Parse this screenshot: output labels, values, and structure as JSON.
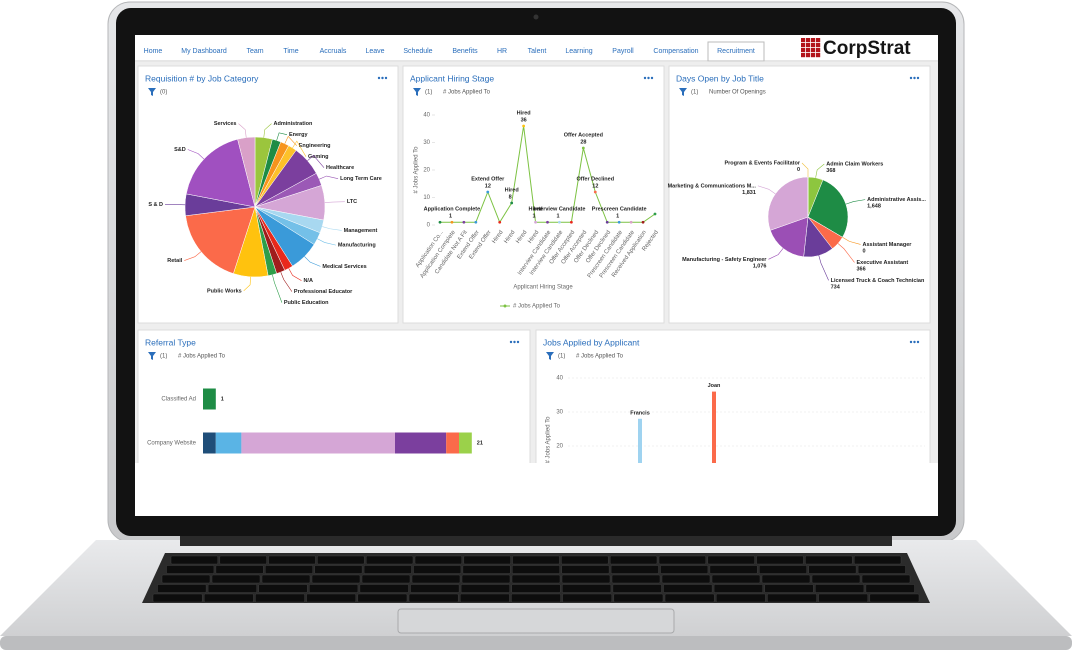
{
  "nav": {
    "tabs": [
      "Home",
      "My Dashboard",
      "Team",
      "Time",
      "Accruals",
      "Leave",
      "Schedule",
      "Benefits",
      "HR",
      "Talent",
      "Learning",
      "Payroll",
      "Compensation",
      "Recruitment"
    ],
    "active": 13,
    "logo": "CorpStrat"
  },
  "requisition": {
    "title": "Requisition # by Job Category",
    "filter": "(0)",
    "chart": {
      "type": "pie",
      "categories": [
        "Administration",
        "Energy",
        "Engineering",
        "Gaming",
        "Healthcare",
        "Long Term Care",
        "LTC",
        "Management",
        "Manufacturing",
        "Medical Services",
        "N/A",
        "Professional Educator",
        "Public Education",
        "Public Works",
        "Retail",
        "S & D",
        "S&D",
        "Services"
      ],
      "values": [
        4,
        2,
        2,
        2,
        7,
        3,
        8,
        3,
        3,
        7,
        2,
        2,
        2,
        8,
        18,
        5,
        18,
        4
      ],
      "colors": [
        "#9bc53d",
        "#1e8c45",
        "#f7941d",
        "#fdc12a",
        "#7b3f9e",
        "#9b59b6",
        "#d5a6d6",
        "#a8d8f0",
        "#74c0e8",
        "#3a9ad9",
        "#e8291c",
        "#a01c1c",
        "#2e9e4a",
        "#ffc20e",
        "#fb6a4a",
        "#6a3d9a",
        "#a050c0",
        "#d9a0c8"
      ]
    }
  },
  "hiring": {
    "title": "Applicant Hiring Stage",
    "filter": "(1)",
    "filter_label": "# Jobs Applied To",
    "chart": {
      "type": "line",
      "x_label": "Applicant Hiring Stage",
      "y_label": "# Jobs Applied To",
      "categories": [
        "Application Co...",
        "Application Complete",
        "Candidate Not A Fit",
        "Extend Offer",
        "Extend Offer",
        "Hired",
        "Hired",
        "Hired",
        "Hired",
        "Interview Candidate",
        "Interview Candidate",
        "Offer Accepted",
        "Offer Accepted",
        "Offer Declined",
        "Offer Declined",
        "Prescreen Candidate",
        "Prescreen Candidate",
        "Received Application",
        "Rejected"
      ],
      "series": [
        {
          "name": "# Jobs Applied To",
          "color": "#7cc242",
          "values": [
            1,
            1,
            1,
            1,
            12,
            1,
            8,
            36,
            1,
            1,
            1,
            1,
            28,
            12,
            1,
            1,
            1,
            1,
            4
          ]
        }
      ],
      "marker_colors": [
        "#1e8c45",
        "#f7941d",
        "#7b3f9e",
        "#3a9ad9",
        "#3a9ad9",
        "#e8291c",
        "#1e8c45",
        "#ffc20e",
        "#d5a6d6",
        "#7b3f9e",
        "#a8d8f0",
        "#e8291c",
        "#7cc242",
        "#fb6a4a",
        "#6a3d9a",
        "#3a9ad9",
        "#d9a0c8",
        "#a01c1c",
        "#2e9e4a"
      ],
      "ylim": [
        0,
        40
      ],
      "yticks": [
        0,
        10,
        20,
        30,
        40
      ]
    }
  },
  "days_open": {
    "title": "Days Open by Job Title",
    "filter": "(1)",
    "filter_label": "Number Of Openings",
    "chart": {
      "type": "pie",
      "categories": [
        "Admin Claim Workers",
        "Administrative Assis...",
        "Assistant Manager",
        "Executive Assistant",
        "Licensed Truck & Coach Technician",
        "Manufacturing - Safety Engineer",
        "Marketing & Communications M...",
        "Program & Events Facilitator"
      ],
      "values": [
        368,
        1648,
        0,
        366,
        734,
        1076,
        1831,
        0
      ],
      "value_labels": [
        "368",
        "1,648",
        "0",
        "366",
        "734",
        "1,076",
        "1,831",
        "0"
      ],
      "colors": [
        "#8dc63f",
        "#1e8c45",
        "#f7941d",
        "#fb6a4a",
        "#6a3d9a",
        "#9b4fb5",
        "#d5a6d6",
        "#f0c040"
      ]
    }
  },
  "referral": {
    "title": "Referral Type",
    "filter": "(1)",
    "filter_label": "# Jobs Applied To",
    "chart": {
      "type": "stacked_bar",
      "categories": [
        "Classified Ad",
        "Company Website"
      ],
      "series": [
        {
          "color": "#1f4e79",
          "values": [
            null,
            1
          ]
        },
        {
          "color": "#5ab4e5",
          "values": [
            null,
            2
          ]
        },
        {
          "color": "#d5a6d6",
          "values": [
            null,
            12
          ]
        },
        {
          "color": "#7b3f9e",
          "values": [
            null,
            4
          ]
        },
        {
          "color": "#fb6a4a",
          "values": [
            null,
            1
          ]
        },
        {
          "color": "#9bd14a",
          "values": [
            null,
            1
          ]
        },
        {
          "color": "#1e8c45",
          "values": [
            1,
            null
          ]
        }
      ],
      "totals": [
        1,
        21
      ],
      "xlim": [
        0,
        25
      ]
    }
  },
  "applicant": {
    "title": "Jobs Applied by Applicant",
    "filter": "(1)",
    "filter_label": "# Jobs Applied To",
    "chart": {
      "type": "bar",
      "y_label": "# Jobs Applied To",
      "categories": [
        "Francis",
        "Joan"
      ],
      "values": [
        28,
        36
      ],
      "colors": [
        "#9fd3f0",
        "#fb6a4a"
      ],
      "ylim": [
        0,
        40
      ],
      "yticks": [
        0,
        10,
        20,
        30,
        40
      ],
      "grid": true
    }
  }
}
